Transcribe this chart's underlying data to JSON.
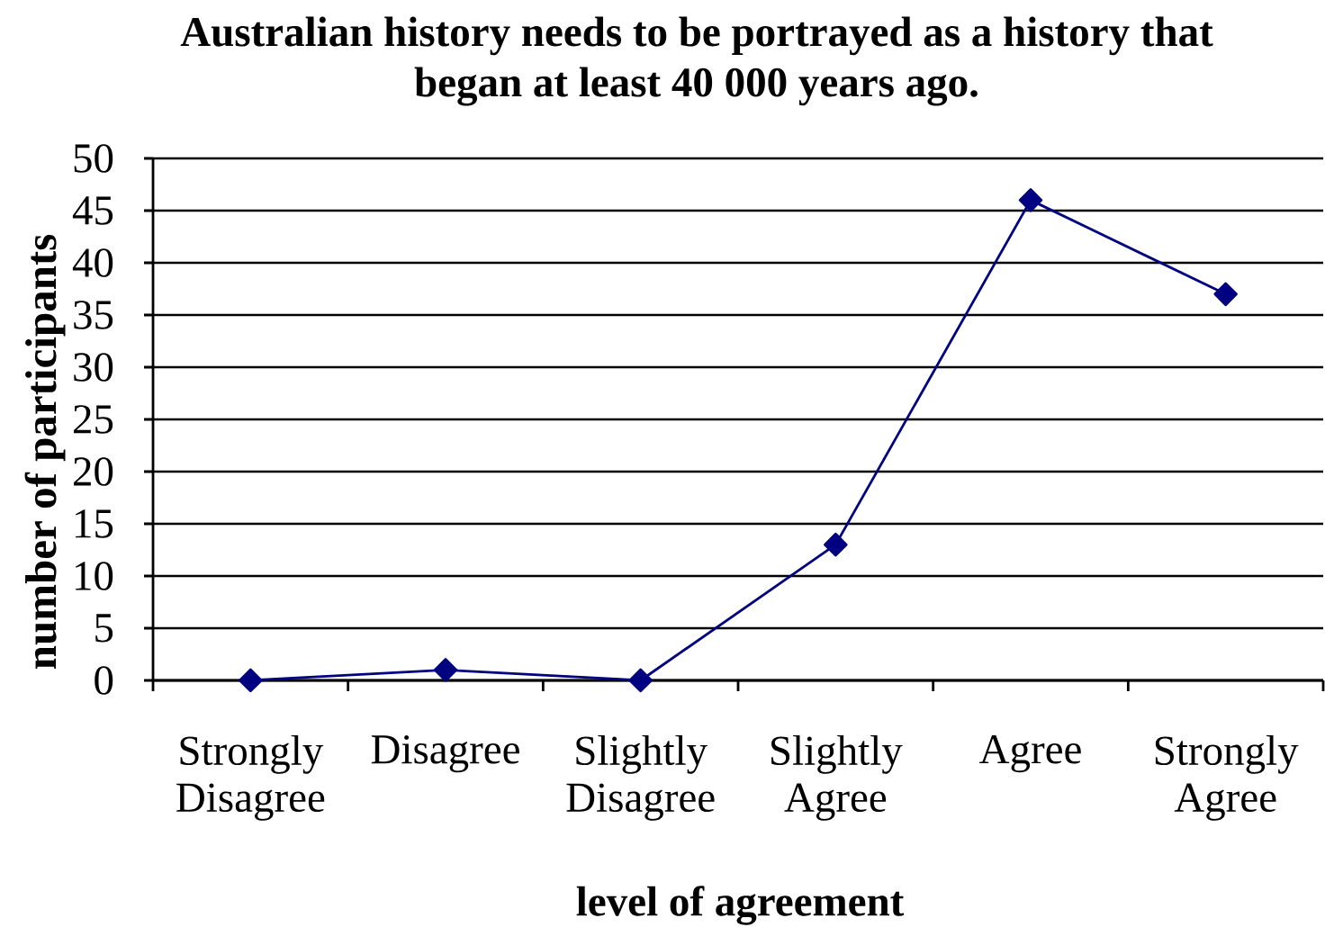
{
  "chart_data": {
    "type": "line",
    "title": "Australian history needs to be portrayed as a history that began at least 40 000 years ago.",
    "xlabel": "level of agreement",
    "ylabel": "number of participants",
    "categories": [
      "Strongly Disagree",
      "Disagree",
      "Slightly Disagree",
      "Slightly Agree",
      "Agree",
      "Strongly Agree"
    ],
    "values": [
      0,
      1,
      0,
      13,
      46,
      37
    ],
    "color": "#000080",
    "ylim": [
      0,
      50
    ],
    "yticks": [
      0,
      5,
      10,
      15,
      20,
      25,
      30,
      35,
      40,
      45,
      50
    ],
    "grid": "y",
    "marker": "diamond",
    "line_style": "solid"
  }
}
